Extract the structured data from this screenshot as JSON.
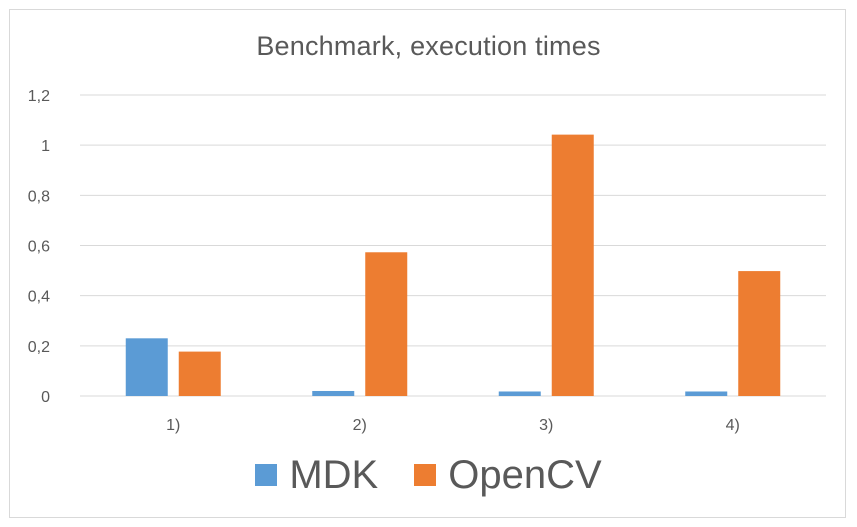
{
  "chart_data": {
    "type": "bar",
    "title": "Benchmark, execution times",
    "xlabel": "",
    "ylabel": "",
    "categories": [
      "1)",
      "2)",
      "3)",
      "4)"
    ],
    "y_ticks": [
      "0",
      "0,2",
      "0,4",
      "0,6",
      "0,8",
      "1",
      "1,2"
    ],
    "ylim": [
      0,
      1.2
    ],
    "grid": true,
    "legend": "bottom",
    "series": [
      {
        "name": "MDK",
        "color": "#5b9bd5",
        "values": [
          0.23,
          0.02,
          0.018,
          0.018
        ]
      },
      {
        "name": "OpenCV",
        "color": "#ed7d31",
        "values": [
          0.177,
          0.573,
          1.042,
          0.498
        ]
      }
    ]
  }
}
